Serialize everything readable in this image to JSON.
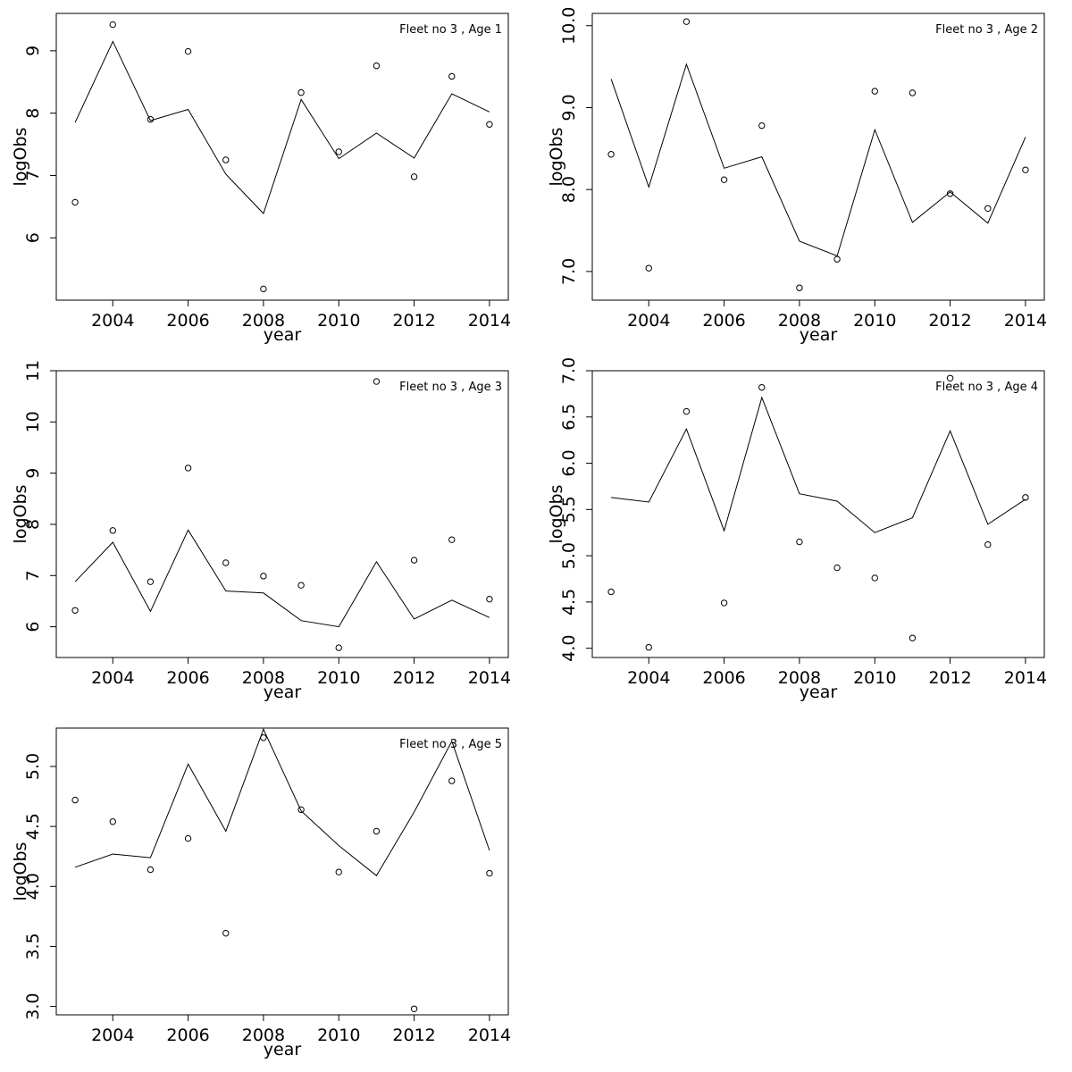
{
  "chart_data": [
    {
      "type": "line",
      "title": "Fleet no 3 , Age 1",
      "xlabel": "year",
      "ylabel": "logObs",
      "xlim": [
        2002.5,
        2014.5
      ],
      "ylim": [
        5.0,
        9.6
      ],
      "x_ticks": [
        2004,
        2006,
        2008,
        2010,
        2012,
        2014
      ],
      "x_tick_labels": [
        "2004",
        "2006",
        "2008",
        "2010",
        "2012",
        "2014"
      ],
      "y_ticks": [
        6,
        7,
        8,
        9
      ],
      "y_tick_labels": [
        "6",
        "7",
        "8",
        "9"
      ],
      "x": [
        2003,
        2004,
        2005,
        2006,
        2007,
        2008,
        2009,
        2010,
        2011,
        2012,
        2013,
        2014
      ],
      "series": [
        {
          "kind": "points",
          "values": [
            6.57,
            9.42,
            7.9,
            8.99,
            7.25,
            5.18,
            8.33,
            7.38,
            8.76,
            6.98,
            8.59,
            7.82
          ]
        },
        {
          "kind": "line",
          "values": [
            7.85,
            9.15,
            7.88,
            8.06,
            7.02,
            6.39,
            8.22,
            7.27,
            7.68,
            7.28,
            8.31,
            8.02
          ]
        }
      ]
    },
    {
      "type": "line",
      "title": "Fleet no 3 , Age 2",
      "xlabel": "year",
      "ylabel": "logObs",
      "xlim": [
        2002.5,
        2014.5
      ],
      "ylim": [
        6.65,
        10.15
      ],
      "x_ticks": [
        2004,
        2006,
        2008,
        2010,
        2012,
        2014
      ],
      "x_tick_labels": [
        "2004",
        "2006",
        "2008",
        "2010",
        "2012",
        "2014"
      ],
      "y_ticks": [
        7.0,
        8.0,
        9.0,
        10.0
      ],
      "y_tick_labels": [
        "7.0",
        "8.0",
        "9.0",
        "10.0"
      ],
      "x": [
        2003,
        2004,
        2005,
        2006,
        2007,
        2008,
        2009,
        2010,
        2011,
        2012,
        2013,
        2014
      ],
      "series": [
        {
          "kind": "points",
          "values": [
            8.43,
            7.04,
            10.05,
            8.12,
            8.78,
            6.8,
            7.15,
            9.2,
            9.18,
            7.95,
            7.77,
            8.24
          ]
        },
        {
          "kind": "line",
          "values": [
            9.35,
            8.03,
            9.53,
            8.26,
            8.4,
            7.37,
            7.19,
            8.73,
            7.6,
            7.97,
            7.59,
            8.64
          ]
        }
      ]
    },
    {
      "type": "line",
      "title": "Fleet no 3 , Age 3",
      "xlabel": "year",
      "ylabel": "logObs",
      "xlim": [
        2002.5,
        2014.5
      ],
      "ylim": [
        5.4,
        11.0
      ],
      "x_ticks": [
        2004,
        2006,
        2008,
        2010,
        2012,
        2014
      ],
      "x_tick_labels": [
        "2004",
        "2006",
        "2008",
        "2010",
        "2012",
        "2014"
      ],
      "y_ticks": [
        6,
        7,
        8,
        9,
        10,
        11
      ],
      "y_tick_labels": [
        "6",
        "7",
        "8",
        "9",
        "10",
        "11"
      ],
      "x": [
        2003,
        2004,
        2005,
        2006,
        2007,
        2008,
        2009,
        2010,
        2011,
        2012,
        2013,
        2014
      ],
      "series": [
        {
          "kind": "points",
          "values": [
            6.32,
            7.88,
            6.88,
            9.1,
            7.25,
            6.99,
            6.81,
            5.59,
            10.79,
            7.3,
            7.7,
            6.54
          ]
        },
        {
          "kind": "line",
          "values": [
            6.88,
            7.65,
            6.3,
            7.89,
            6.7,
            6.66,
            6.12,
            6.0,
            7.27,
            6.15,
            6.52,
            6.18
          ]
        }
      ]
    },
    {
      "type": "line",
      "title": "Fleet no 3 , Age 4",
      "xlabel": "year",
      "ylabel": "logObs",
      "xlim": [
        2002.5,
        2014.5
      ],
      "ylim": [
        3.9,
        7.0
      ],
      "x_ticks": [
        2004,
        2006,
        2008,
        2010,
        2012,
        2014
      ],
      "x_tick_labels": [
        "2004",
        "2006",
        "2008",
        "2010",
        "2012",
        "2014"
      ],
      "y_ticks": [
        4.0,
        4.5,
        5.0,
        5.5,
        6.0,
        6.5,
        7.0
      ],
      "y_tick_labels": [
        "4.0",
        "4.5",
        "5.0",
        "5.5",
        "6.0",
        "6.5",
        "7.0"
      ],
      "x": [
        2003,
        2004,
        2005,
        2006,
        2007,
        2008,
        2009,
        2010,
        2011,
        2012,
        2013,
        2014
      ],
      "series": [
        {
          "kind": "points",
          "values": [
            4.61,
            4.01,
            6.56,
            4.49,
            6.82,
            5.15,
            4.87,
            4.76,
            4.11,
            6.92,
            5.12,
            5.63
          ]
        },
        {
          "kind": "line",
          "values": [
            5.63,
            5.58,
            6.37,
            5.27,
            6.71,
            5.67,
            5.59,
            5.25,
            5.41,
            6.35,
            5.34,
            5.61
          ]
        }
      ]
    },
    {
      "type": "line",
      "title": "Fleet no 3 , Age 5",
      "xlabel": "year",
      "ylabel": "logObs",
      "xlim": [
        2002.5,
        2014.5
      ],
      "ylim": [
        2.93,
        5.32
      ],
      "x_ticks": [
        2004,
        2006,
        2008,
        2010,
        2012,
        2014
      ],
      "x_tick_labels": [
        "2004",
        "2006",
        "2008",
        "2010",
        "2012",
        "2014"
      ],
      "y_ticks": [
        3.0,
        3.5,
        4.0,
        4.5,
        5.0
      ],
      "y_tick_labels": [
        "3.0",
        "3.5",
        "4.0",
        "4.5",
        "5.0"
      ],
      "x": [
        2003,
        2004,
        2005,
        2006,
        2007,
        2008,
        2009,
        2010,
        2011,
        2012,
        2013,
        2014
      ],
      "series": [
        {
          "kind": "points",
          "values": [
            4.72,
            4.54,
            4.14,
            4.4,
            3.61,
            5.24,
            4.64,
            4.12,
            4.46,
            2.98,
            4.88,
            4.11
          ]
        },
        {
          "kind": "line",
          "values": [
            4.16,
            4.27,
            4.24,
            5.02,
            4.46,
            5.31,
            4.63,
            4.34,
            4.09,
            4.62,
            5.21,
            4.3
          ]
        }
      ]
    }
  ]
}
